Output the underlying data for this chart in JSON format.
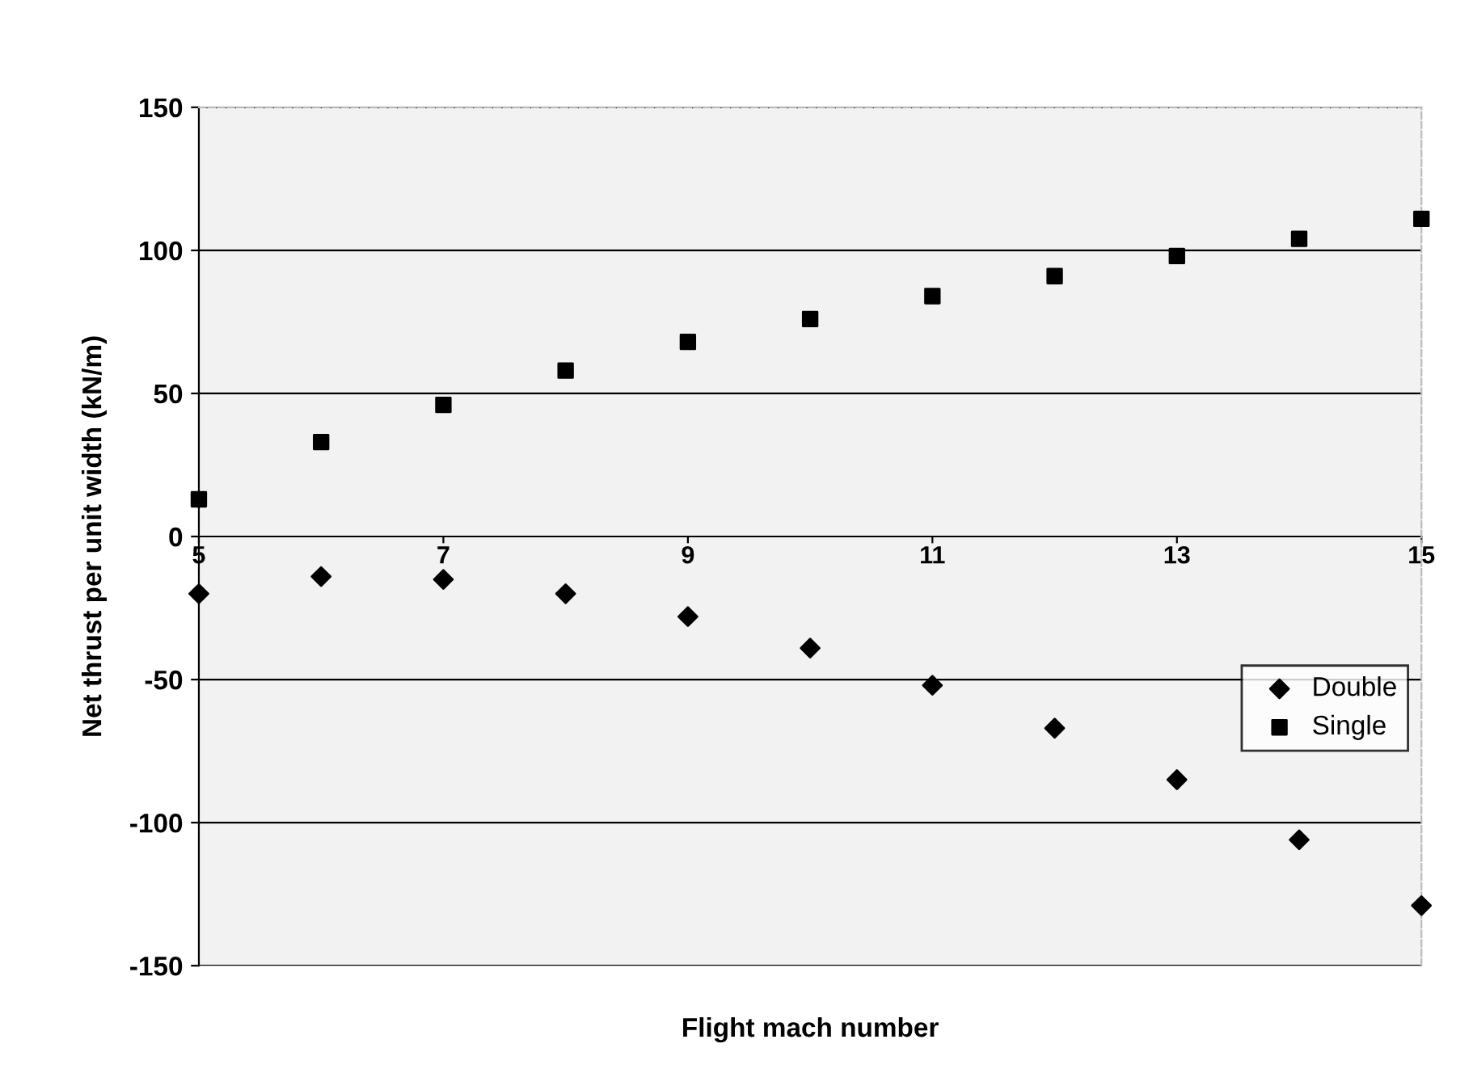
{
  "chart_data": {
    "type": "scatter",
    "xlabel": "Flight mach number",
    "ylabel": "Net thrust per unit width (kN/m)",
    "xlim": [
      5,
      15
    ],
    "xticks": [
      5,
      7,
      9,
      11,
      13,
      15
    ],
    "ylim": [
      -150,
      150
    ],
    "yticks": [
      -150,
      -100,
      -50,
      0,
      50,
      100,
      150
    ],
    "grid": "y",
    "legend": "right",
    "series": [
      {
        "name": "Double",
        "color": "#000000",
        "marker": "diamond",
        "x": [
          5,
          6,
          7,
          8,
          9,
          10,
          11,
          12,
          13,
          14,
          15
        ],
        "values": [
          -20,
          -14,
          -15,
          -20,
          -28,
          -39,
          -52,
          -67,
          -85,
          -106,
          -129
        ]
      },
      {
        "name": "Single",
        "color": "#000000",
        "marker": "square",
        "x": [
          5,
          6,
          7,
          8,
          9,
          10,
          11,
          12,
          13,
          14,
          15
        ],
        "values": [
          13,
          33,
          46,
          58,
          68,
          76,
          84,
          91,
          98,
          104,
          111
        ]
      }
    ]
  }
}
